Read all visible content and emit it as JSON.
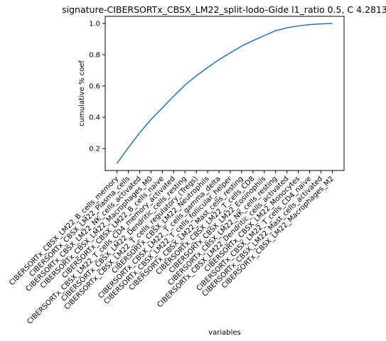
{
  "chart_data": {
    "type": "line",
    "title": "signature-CIBERSORTx_CBSX_LM22_split-lodo-Gide l1_ratio 0.5, C 4.2813",
    "xlabel": "variables",
    "ylabel": "cumulative % coef",
    "x": [
      "CIBERSORTx_CBSX_LM22_B_cells_memory",
      "CIBERSORTx_CBSX_LM22_Plasma_cells",
      "CIBERSORTx_CBSX_LM22_NK_cells_activated",
      "CIBERSORTx_CBSX_LM22_Macrophages_M0",
      "CIBERSORTx_CBSX_LM22_B_cells_naive",
      "CIBERSORTx_CBSX_LM22_T_cells_CD4_memory_activated",
      "CIBERSORTx_CBSX_LM22_Dendritic_cells_resting",
      "CIBERSORTx_CBSX_LM22_T_cells_regulatory_(Tregs)",
      "CIBERSORTx_CBSX_LM22_Neutrophils",
      "CIBERSORTx_CBSX_LM22_T_cells_gamma_delta",
      "CIBERSORTx_CBSX_LM22_T_cells_follicular_helper",
      "CIBERSORTx_CBSX_LM22_Mast_cells_resting",
      "CIBERSORTx_CBSX_LM22_T_cells_CD8",
      "CIBERSORTx_CBSX_LM22_Eosinophils",
      "CIBERSORTx_CBSX_LM22_NK_cells_resting",
      "CIBERSORTx_CBSX_LM22_Dendritic_cells_activated",
      "CIBERSORTx_CBSX_LM22_Monocytes",
      "CIBERSORTx_CBSX_LM22_T_cells_CD4_naive",
      "CIBERSORTx_CBSX_LM22_Mast_cells_activated",
      "CIBERSORTx_CBSX_LM22_Macrophages_M2"
    ],
    "series": [
      {
        "values": [
          0.105,
          0.205,
          0.3,
          0.385,
          0.46,
          0.535,
          0.605,
          0.665,
          0.718,
          0.768,
          0.812,
          0.855,
          0.89,
          0.922,
          0.953,
          0.972,
          0.984,
          0.992,
          0.997,
          1.0
        ]
      }
    ],
    "yticks": [
      0.2,
      0.4,
      0.6,
      0.8,
      1.0
    ],
    "ytick_labels": [
      "0.2",
      "0.4",
      "0.6",
      "0.8",
      "1.0"
    ],
    "ylim": [
      0.06,
      1.045
    ],
    "grid": false,
    "colors": {
      "line": "#1f77b4",
      "axes": "#000000"
    }
  }
}
